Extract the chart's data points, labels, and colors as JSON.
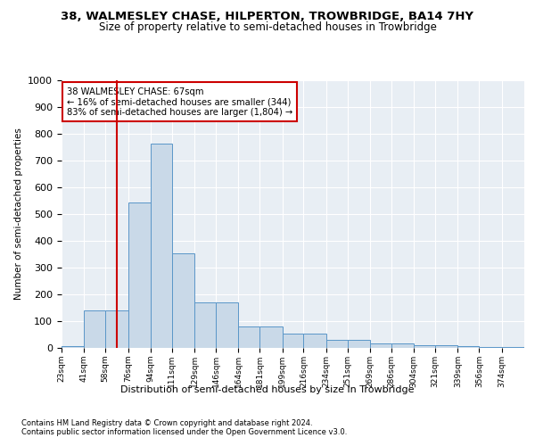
{
  "title1": "38, WALMESLEY CHASE, HILPERTON, TROWBRIDGE, BA14 7HY",
  "title2": "Size of property relative to semi-detached houses in Trowbridge",
  "xlabel": "Distribution of semi-detached houses by size in Trowbridge",
  "ylabel": "Number of semi-detached properties",
  "footer1": "Contains HM Land Registry data © Crown copyright and database right 2024.",
  "footer2": "Contains public sector information licensed under the Open Government Licence v3.0.",
  "property_size": 67,
  "property_label": "38 WALMESLEY CHASE: 67sqm",
  "annotation_line1": "← 16% of semi-detached houses are smaller (344)",
  "annotation_line2": "83% of semi-detached houses are larger (1,804) →",
  "bin_labels": [
    "23sqm",
    "41sqm",
    "58sqm",
    "76sqm",
    "94sqm",
    "111sqm",
    "129sqm",
    "146sqm",
    "164sqm",
    "181sqm",
    "199sqm",
    "216sqm",
    "234sqm",
    "251sqm",
    "269sqm",
    "286sqm",
    "304sqm",
    "321sqm",
    "339sqm",
    "356sqm",
    "374sqm"
  ],
  "bin_edges": [
    23,
    41,
    58,
    76,
    94,
    111,
    129,
    146,
    164,
    181,
    199,
    216,
    234,
    251,
    269,
    286,
    304,
    321,
    339,
    356,
    374,
    392
  ],
  "bar_heights": [
    8,
    140,
    140,
    545,
    765,
    355,
    170,
    170,
    80,
    80,
    55,
    55,
    30,
    30,
    18,
    18,
    10,
    10,
    8,
    5,
    5
  ],
  "bar_color": "#c9d9e8",
  "bar_edge_color": "#5a96c8",
  "line_color": "#cc0000",
  "bg_color": "#e8eef4",
  "annotation_box_color": "#cc0000",
  "ylim": [
    0,
    1000
  ],
  "yticks": [
    0,
    100,
    200,
    300,
    400,
    500,
    600,
    700,
    800,
    900,
    1000
  ],
  "figsize": [
    6.0,
    5.0
  ],
  "dpi": 100
}
